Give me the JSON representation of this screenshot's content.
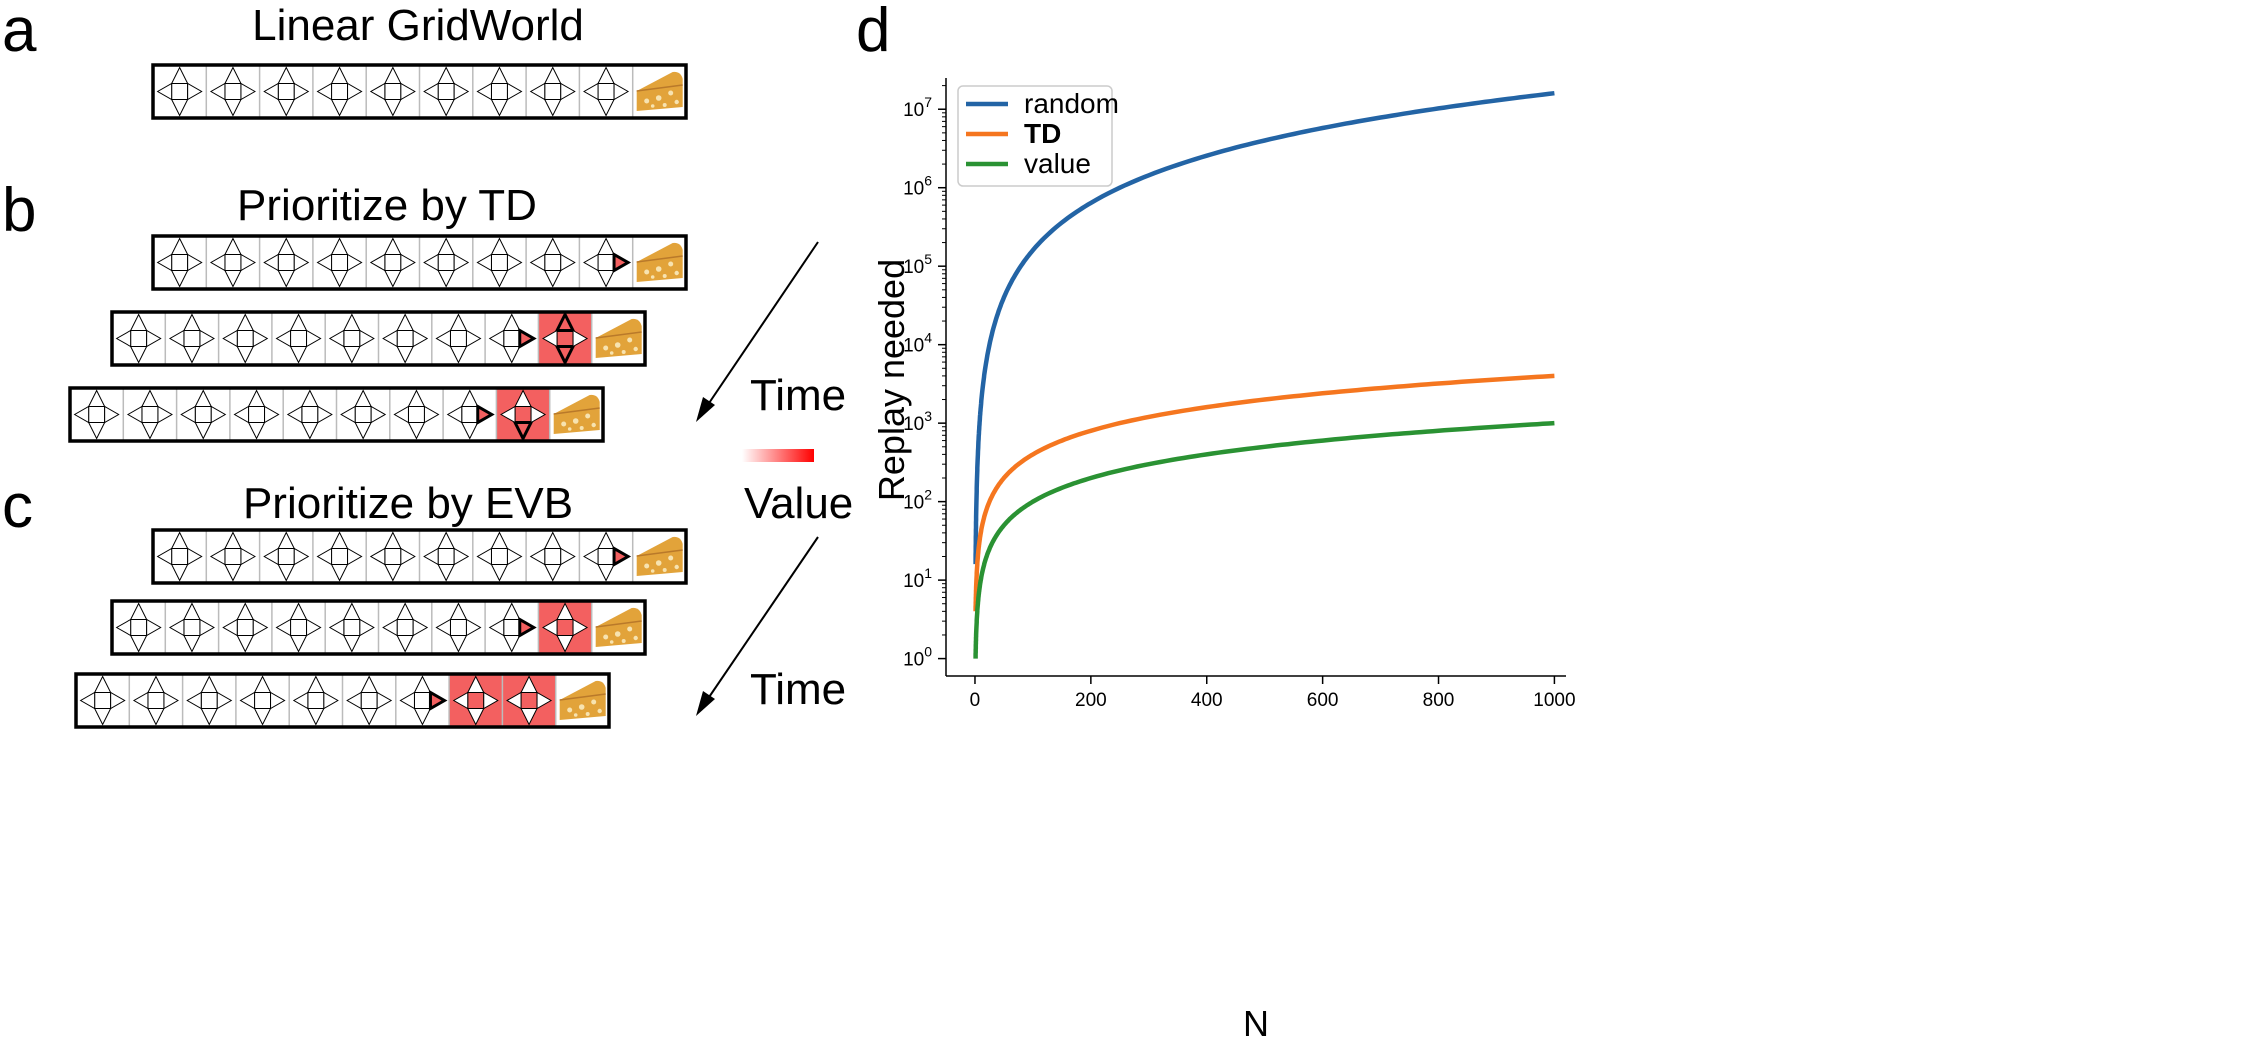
{
  "panels": {
    "a": {
      "letter": "a",
      "title": "Linear GridWorld"
    },
    "b": {
      "letter": "b",
      "title": "Prioritize by TD"
    },
    "c": {
      "letter": "c",
      "title": "Prioritize by EVB"
    },
    "d": {
      "letter": "d"
    }
  },
  "side_labels": {
    "time_top": "Time",
    "value": "Value",
    "time_bottom": "Time"
  },
  "colors": {
    "highlight": "#f36060",
    "cheese": "#e2a33a",
    "random": "#2364a5",
    "td": "#f5761f",
    "value": "#2a9233"
  },
  "icons": {
    "state_cell": "four-arrow-state-icon",
    "goal": "cheese-icon",
    "time_arrow": "arrow-down-left-icon",
    "value_bar": "gradient-bar-icon"
  },
  "chart_data": {
    "type": "line",
    "xlabel": "N",
    "ylabel": "Replay needed",
    "xlim": [
      -50,
      1020
    ],
    "yscale": "log",
    "ylim": [
      0.6,
      25000000
    ],
    "x_ticks": [
      "0",
      "200",
      "400",
      "600",
      "800",
      "1000"
    ],
    "y_ticks": [
      {
        "base": "10",
        "exp": "0"
      },
      {
        "base": "10",
        "exp": "1"
      },
      {
        "base": "10",
        "exp": "2"
      },
      {
        "base": "10",
        "exp": "3"
      },
      {
        "base": "10",
        "exp": "4"
      },
      {
        "base": "10",
        "exp": "5"
      },
      {
        "base": "10",
        "exp": "6"
      },
      {
        "base": "10",
        "exp": "7"
      }
    ],
    "legend_position": "top-left",
    "series": [
      {
        "name": "random",
        "formula_points": {
          "x": [
            1,
            2,
            5,
            10,
            20,
            50,
            100,
            200,
            400,
            600,
            800,
            1000
          ],
          "y": [
            16,
            64,
            400,
            1600,
            6400,
            40000,
            160000,
            640000,
            2560000,
            5760000,
            10240000,
            16000000
          ]
        }
      },
      {
        "name": "TD",
        "formula_points": {
          "x": [
            1,
            2,
            5,
            10,
            20,
            50,
            100,
            200,
            400,
            600,
            800,
            1000
          ],
          "y": [
            4,
            8,
            20,
            40,
            80,
            200,
            400,
            800,
            1600,
            2400,
            3200,
            4000
          ]
        }
      },
      {
        "name": "value",
        "formula_points": {
          "x": [
            1,
            2,
            5,
            10,
            20,
            50,
            100,
            200,
            400,
            600,
            800,
            1000
          ],
          "y": [
            1,
            2,
            5,
            10,
            20,
            50,
            100,
            200,
            400,
            600,
            800,
            1000
          ]
        }
      }
    ]
  }
}
